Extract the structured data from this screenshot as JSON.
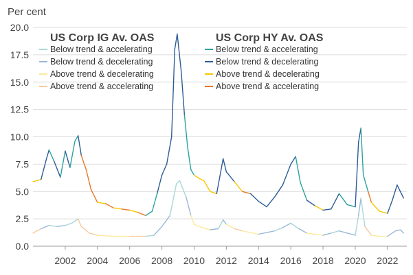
{
  "chart_data": {
    "type": "line",
    "title": "",
    "unit_label": "Per cent",
    "xlabel": "",
    "ylabel": "",
    "xlim": [
      2000,
      2023.2
    ],
    "ylim": [
      0,
      20
    ],
    "y_ticks": [
      "0.0",
      "2.5",
      "5.0",
      "7.5",
      "10.0",
      "12.5",
      "15.0",
      "17.5",
      "20.0"
    ],
    "x_ticks": [
      "2002",
      "2004",
      "2006",
      "2008",
      "2010",
      "2012",
      "2014",
      "2016",
      "2018",
      "2020",
      "2022"
    ],
    "grid": "horizontal",
    "legend_placement": "top",
    "legends": [
      {
        "title": "US Corp IG Av. OAS",
        "entries": [
          {
            "label": "Below trend & accelerating",
            "color": "#a8d8d4"
          },
          {
            "label": "Below trend & decelerating",
            "color": "#9ab8d8"
          },
          {
            "label": "Above trend & decelerating",
            "color": "#fde99a"
          },
          {
            "label": "Above trend & accelerating",
            "color": "#f8c9a0"
          }
        ]
      },
      {
        "title": "US Corp HY Av. OAS",
        "entries": [
          {
            "label": "Below trend & accelerating",
            "color": "#2aa39c"
          },
          {
            "label": "Below trend & decelerating",
            "color": "#2e5c96"
          },
          {
            "label": "Above trend & decelerating",
            "color": "#f7c600"
          },
          {
            "label": "Above trend & accelerating",
            "color": "#e8772a"
          }
        ]
      }
    ],
    "series": [
      {
        "name": "US Corp HY Av. OAS",
        "x": [
          2000.0,
          2000.5,
          2000.8,
          2001.0,
          2001.3,
          2001.7,
          2002.0,
          2002.3,
          2002.6,
          2002.8,
          2003.0,
          2003.3,
          2003.6,
          2004.0,
          2004.5,
          2005.0,
          2005.5,
          2006.0,
          2006.5,
          2007.0,
          2007.4,
          2007.7,
          2008.0,
          2008.3,
          2008.6,
          2008.8,
          2008.95,
          2009.2,
          2009.4,
          2009.6,
          2009.8,
          2010.0,
          2010.3,
          2010.6,
          2011.0,
          2011.4,
          2011.8,
          2012.0,
          2012.5,
          2013.0,
          2013.5,
          2014.0,
          2014.5,
          2015.0,
          2015.5,
          2016.0,
          2016.3,
          2016.6,
          2017.0,
          2017.5,
          2018.0,
          2018.5,
          2019.0,
          2019.5,
          2020.0,
          2020.2,
          2020.35,
          2020.5,
          2020.8,
          2021.0,
          2021.5,
          2022.0,
          2022.3,
          2022.6,
          2022.8,
          2023.0
        ],
        "y": [
          5.9,
          6.1,
          7.8,
          8.8,
          7.8,
          6.3,
          8.7,
          7.2,
          9.6,
          10.1,
          8.3,
          7.0,
          5.2,
          4.0,
          3.9,
          3.5,
          3.4,
          3.3,
          3.1,
          2.8,
          3.2,
          4.8,
          6.5,
          7.5,
          10.0,
          18.0,
          19.4,
          16.0,
          12.0,
          9.0,
          7.0,
          6.5,
          6.2,
          6.0,
          5.0,
          4.8,
          8.0,
          6.8,
          5.9,
          5.0,
          4.8,
          4.1,
          3.6,
          4.5,
          5.6,
          7.5,
          8.2,
          5.8,
          4.2,
          3.7,
          3.3,
          3.4,
          4.8,
          3.8,
          3.6,
          9.5,
          10.8,
          6.5,
          5.0,
          4.0,
          3.2,
          3.0,
          4.2,
          5.6,
          5.0,
          4.4
        ],
        "colors": [
          "#f7c600",
          "#2e5c96",
          "#2e5c96",
          "#2aa39c",
          "#2e5c96",
          "#2aa39c",
          "#2e5c96",
          "#2aa39c",
          "#2aa39c",
          "#2e5c96",
          "#e8772a",
          "#e8772a",
          "#e8772a",
          "#f7c600",
          "#e8772a",
          "#f7c600",
          "#e8772a",
          "#f7c600",
          "#e8772a",
          "#2aa39c",
          "#2aa39c",
          "#2e5c96",
          "#2e5c96",
          "#2e5c96",
          "#2e5c96",
          "#2e5c96",
          "#2e5c96",
          "#2e5c96",
          "#2aa39c",
          "#2aa39c",
          "#2aa39c",
          "#f7c600",
          "#f7c600",
          "#f7c600",
          "#f7c600",
          "#2e5c96",
          "#2e5c96",
          "#2e5c96",
          "#f7c600",
          "#e8772a",
          "#2e5c96",
          "#2e5c96",
          "#2e5c96",
          "#2e5c96",
          "#2e5c96",
          "#2e5c96",
          "#2aa39c",
          "#2aa39c",
          "#2e5c96",
          "#f7c600",
          "#2e5c96",
          "#2e5c96",
          "#2aa39c",
          "#2aa39c",
          "#2e5c96",
          "#2e5c96",
          "#2aa39c",
          "#2aa39c",
          "#e8772a",
          "#f7c600",
          "#f7c600",
          "#2e5c96",
          "#2e5c96",
          "#2e5c96",
          "#2e5c96"
        ]
      },
      {
        "name": "US Corp IG Av. OAS",
        "x": [
          2000.0,
          2000.5,
          2001.0,
          2001.5,
          2002.0,
          2002.4,
          2002.8,
          2003.0,
          2003.5,
          2004.0,
          2005.0,
          2006.0,
          2007.0,
          2007.5,
          2008.0,
          2008.5,
          2008.9,
          2009.1,
          2009.5,
          2009.8,
          2010.0,
          2010.5,
          2011.0,
          2011.5,
          2011.8,
          2012.0,
          2012.5,
          2013.0,
          2014.0,
          2015.0,
          2015.5,
          2016.0,
          2016.5,
          2017.0,
          2018.0,
          2018.5,
          2019.0,
          2019.5,
          2020.0,
          2020.2,
          2020.35,
          2020.6,
          2021.0,
          2021.5,
          2022.0,
          2022.5,
          2022.8,
          2023.0
        ],
        "y": [
          1.2,
          1.6,
          1.9,
          1.8,
          1.9,
          2.1,
          2.5,
          1.8,
          1.2,
          1.0,
          0.9,
          0.9,
          0.9,
          1.0,
          1.8,
          2.8,
          5.7,
          6.0,
          4.5,
          2.8,
          2.0,
          1.7,
          1.5,
          1.6,
          2.4,
          2.0,
          1.6,
          1.4,
          1.1,
          1.4,
          1.7,
          2.1,
          1.6,
          1.2,
          1.0,
          1.2,
          1.4,
          1.2,
          1.0,
          2.8,
          4.4,
          1.8,
          1.0,
          0.9,
          0.9,
          1.4,
          1.5,
          1.2
        ],
        "colors": [
          "#f8c9a0",
          "#9ab8d8",
          "#a8d8d4",
          "#9ab8d8",
          "#a8d8d4",
          "#a8d8d4",
          "#f8c9a0",
          "#f8c9a0",
          "#f8c9a0",
          "#fde99a",
          "#fde99a",
          "#f8c9a0",
          "#a8d8d4",
          "#9ab8d8",
          "#9ab8d8",
          "#a8d8d4",
          "#a8d8d4",
          "#a8d8d4",
          "#9ab8d8",
          "#fde99a",
          "#fde99a",
          "#fde99a",
          "#9ab8d8",
          "#a8d8d4",
          "#9ab8d8",
          "#fde99a",
          "#f8c9a0",
          "#fde99a",
          "#9ab8d8",
          "#a8d8d4",
          "#9ab8d8",
          "#a8d8d4",
          "#9ab8d8",
          "#fde99a",
          "#9ab8d8",
          "#a8d8d4",
          "#9ab8d8",
          "#9ab8d8",
          "#a8d8d4",
          "#9ab8d8",
          "#a8d8d4",
          "#f8c9a0",
          "#fde99a",
          "#fde99a",
          "#9ab8d8",
          "#9ab8d8",
          "#9ab8d8"
        ]
      }
    ]
  }
}
